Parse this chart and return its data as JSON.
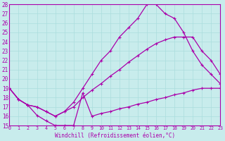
{
  "xlabel": "Windchill (Refroidissement éolien,°C)",
  "bg_color": "#c8ecec",
  "grid_color": "#aadddd",
  "line_color": "#aa00aa",
  "xmin": 0,
  "xmax": 23,
  "ymin": 15,
  "ymax": 28,
  "curve1_x": [
    0,
    1,
    2,
    3,
    4,
    5,
    6,
    7,
    8,
    9,
    10,
    11,
    12,
    13,
    14,
    15,
    16,
    17,
    18,
    19,
    20,
    21,
    22,
    23
  ],
  "curve1_y": [
    19.0,
    17.8,
    17.2,
    17.0,
    16.5,
    16.0,
    16.5,
    17.5,
    19.0,
    20.5,
    22.0,
    23.0,
    24.5,
    25.5,
    26.5,
    28.0,
    28.0,
    27.0,
    26.5,
    25.0,
    23.0,
    21.5,
    20.5,
    19.5
  ],
  "curve2_x": [
    0,
    1,
    2,
    3,
    4,
    5,
    6,
    7,
    8,
    9,
    10,
    11,
    12,
    13,
    14,
    15,
    16,
    17,
    18,
    19,
    20,
    21,
    22,
    23
  ],
  "curve2_y": [
    19.0,
    17.8,
    17.2,
    17.0,
    16.5,
    16.0,
    16.5,
    17.0,
    18.0,
    18.8,
    19.5,
    20.3,
    21.0,
    21.8,
    22.5,
    23.2,
    23.8,
    24.2,
    24.5,
    24.5,
    24.5,
    23.0,
    22.0,
    20.5
  ],
  "curve3_x": [
    0,
    1,
    2,
    3,
    4,
    5,
    6,
    7,
    8,
    9,
    10,
    11,
    12,
    13,
    14,
    15,
    16,
    17,
    18,
    19,
    20,
    21,
    22,
    23
  ],
  "curve3_y": [
    19.0,
    17.8,
    17.2,
    16.1,
    15.5,
    15.0,
    15.0,
    15.0,
    18.5,
    16.0,
    16.3,
    16.5,
    16.8,
    17.0,
    17.3,
    17.5,
    17.8,
    18.0,
    18.3,
    18.5,
    18.8,
    19.0,
    19.0,
    19.0
  ]
}
